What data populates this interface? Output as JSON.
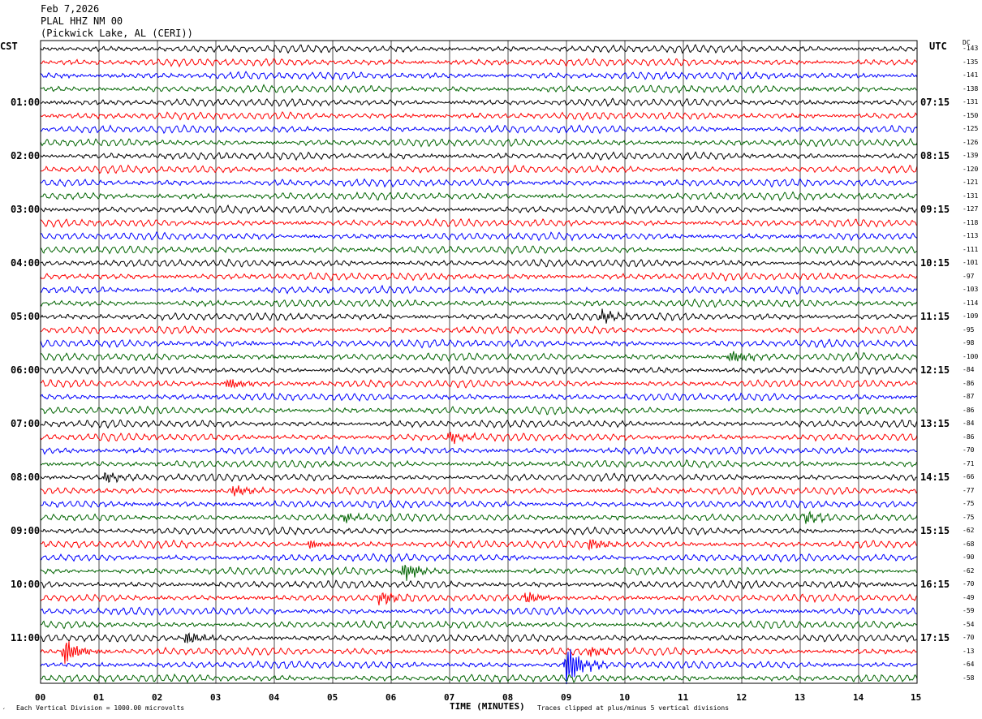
{
  "header": {
    "date": "Feb 7,2026",
    "station": "PLAL HHZ NM 00",
    "location": "(Pickwick Lake, AL (CERI))"
  },
  "left_axis_label": "CST",
  "right_axis_label": "UTC",
  "dc_label": "DC",
  "footer": {
    "scale_note": "Each Vertical Division = 1000.00 microvolts",
    "clip_note": "Traces clipped at plus/minus 5 vertical divisions",
    "corner_mark": "´"
  },
  "chart_data": {
    "type": "line",
    "title": "",
    "xlabel": "TIME (MINUTES)",
    "xlim": [
      0,
      15
    ],
    "x_ticks": [
      "00",
      "01",
      "02",
      "03",
      "04",
      "05",
      "06",
      "07",
      "08",
      "09",
      "10",
      "11",
      "12",
      "13",
      "14",
      "15"
    ],
    "left_time_labels": [
      "01:00",
      "02:00",
      "03:00",
      "04:00",
      "05:00",
      "06:00",
      "07:00",
      "08:00",
      "09:00",
      "10:00",
      "11:00"
    ],
    "right_time_labels": [
      "07:15",
      "08:15",
      "09:15",
      "10:15",
      "11:15",
      "12:15",
      "13:15",
      "14:15",
      "15:15",
      "16:15",
      "17:15"
    ],
    "trace_count": 48,
    "trace_colors": [
      "#000000",
      "#ff0000",
      "#0000ff",
      "#006400"
    ],
    "dc_offsets": [
      -143,
      -135,
      -141,
      -138,
      -131,
      -150,
      -125,
      -126,
      -139,
      -120,
      -121,
      -131,
      -127,
      -118,
      -113,
      -111,
      -101,
      -97,
      -103,
      -114,
      -109,
      -95,
      -98,
      -100,
      -84,
      -86,
      -87,
      -86,
      -84,
      -86,
      -70,
      -71,
      -66,
      -77,
      -75,
      -75,
      -62,
      -68,
      -90,
      -62,
      -70,
      -49,
      -59,
      -54,
      -70,
      -13,
      -64,
      -58
    ],
    "events": [
      {
        "trace": 20,
        "minute": 9.6,
        "amplitude": 1.6
      },
      {
        "trace": 23,
        "minute": 11.8,
        "amplitude": 1.8
      },
      {
        "trace": 25,
        "minute": 3.2,
        "amplitude": 1.8
      },
      {
        "trace": 29,
        "minute": 7.0,
        "amplitude": 1.4
      },
      {
        "trace": 32,
        "minute": 1.1,
        "amplitude": 1.5
      },
      {
        "trace": 33,
        "minute": 3.3,
        "amplitude": 1.5
      },
      {
        "trace": 35,
        "minute": 13.1,
        "amplitude": 1.5
      },
      {
        "trace": 35,
        "minute": 5.2,
        "amplitude": 1.2
      },
      {
        "trace": 37,
        "minute": 9.4,
        "amplitude": 1.8
      },
      {
        "trace": 37,
        "minute": 4.6,
        "amplitude": 1.4
      },
      {
        "trace": 39,
        "minute": 6.2,
        "amplitude": 2.5
      },
      {
        "trace": 41,
        "minute": 5.8,
        "amplitude": 1.8
      },
      {
        "trace": 41,
        "minute": 8.3,
        "amplitude": 1.6
      },
      {
        "trace": 44,
        "minute": 2.5,
        "amplitude": 1.8
      },
      {
        "trace": 45,
        "minute": 0.4,
        "amplitude": 3.5
      },
      {
        "trace": 45,
        "minute": 9.4,
        "amplitude": 1.3
      },
      {
        "trace": 46,
        "minute": 9.0,
        "amplitude": 5.0
      }
    ]
  }
}
